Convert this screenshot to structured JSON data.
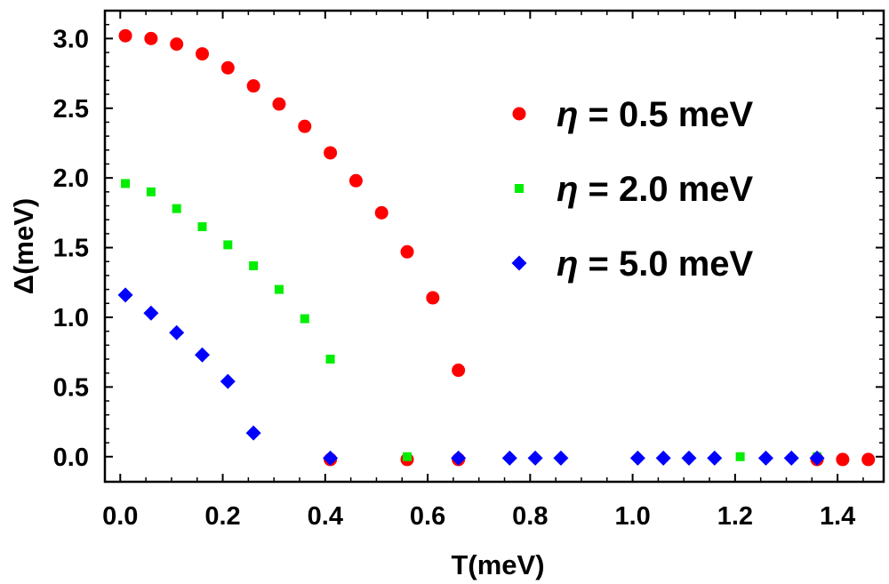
{
  "chart_data": {
    "type": "scatter",
    "title": "",
    "xlabel": "T(meV)",
    "ylabel": "Δ(meV)",
    "xlim": [
      -0.03,
      1.49
    ],
    "ylim": [
      -0.18,
      3.2
    ],
    "xticks": [
      0.0,
      0.2,
      0.4,
      0.6,
      0.8,
      1.0,
      1.2,
      1.4
    ],
    "xtick_labels": [
      "0.0",
      "0.2",
      "0.4",
      "0.6",
      "0.8",
      "1.0",
      "1.2",
      "1.4"
    ],
    "yticks": [
      0.0,
      0.5,
      1.0,
      1.5,
      2.0,
      2.5,
      3.0
    ],
    "ytick_labels": [
      "0.0",
      "0.5",
      "1.0",
      "1.5",
      "2.0",
      "2.5",
      "3.0"
    ],
    "grid": false,
    "legend_position": "right",
    "series": [
      {
        "name": "η = 0.5 meV",
        "legend_symbol": "η",
        "legend_rest": " = 0.5 meV",
        "color": "#ff0000",
        "marker": "circle",
        "x": [
          0.01,
          0.06,
          0.11,
          0.16,
          0.21,
          0.26,
          0.31,
          0.36,
          0.41,
          0.46,
          0.51,
          0.56,
          0.61,
          0.66,
          0.41,
          0.56,
          0.66,
          1.36,
          1.41,
          1.46
        ],
        "y": [
          3.02,
          3.0,
          2.96,
          2.89,
          2.79,
          2.66,
          2.53,
          2.37,
          2.18,
          1.98,
          1.75,
          1.47,
          1.14,
          0.62,
          -0.02,
          -0.02,
          -0.02,
          -0.02,
          -0.02,
          -0.02
        ]
      },
      {
        "name": "η = 2.0 meV",
        "legend_symbol": "η",
        "legend_rest": " = 2.0 meV",
        "color": "#00ee00",
        "marker": "square",
        "x": [
          0.01,
          0.06,
          0.11,
          0.16,
          0.21,
          0.26,
          0.31,
          0.36,
          0.41,
          0.56,
          1.21,
          1.36
        ],
        "y": [
          1.96,
          1.9,
          1.78,
          1.65,
          1.52,
          1.37,
          1.2,
          0.99,
          0.7,
          0.0,
          0.0,
          0.0
        ]
      },
      {
        "name": "η = 5.0 meV",
        "legend_symbol": "η",
        "legend_rest": " = 5.0 meV",
        "color": "#0000ff",
        "marker": "diamond",
        "x": [
          0.01,
          0.06,
          0.11,
          0.16,
          0.21,
          0.26,
          0.41,
          0.66,
          0.76,
          0.81,
          0.86,
          1.01,
          1.06,
          1.11,
          1.16,
          1.26,
          1.31,
          1.36
        ],
        "y": [
          1.16,
          1.03,
          0.89,
          0.73,
          0.54,
          0.17,
          -0.01,
          -0.01,
          -0.01,
          -0.01,
          -0.01,
          -0.01,
          -0.01,
          -0.01,
          -0.01,
          -0.01,
          -0.01,
          -0.01
        ]
      }
    ]
  }
}
